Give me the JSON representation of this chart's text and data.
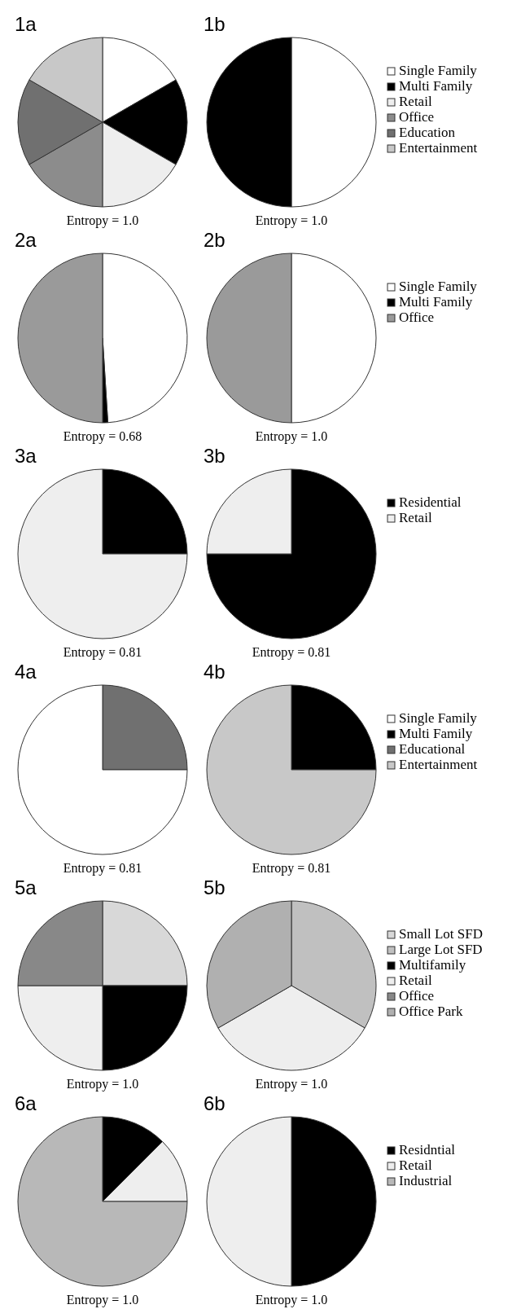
{
  "chart_data": [
    {
      "type": "pie",
      "title": "1a",
      "annotations": [
        "Entropy = 1.0"
      ],
      "categories": [
        null,
        null,
        null,
        null,
        null,
        null
      ],
      "values": [
        16.67,
        16.67,
        16.67,
        16.67,
        16.66,
        16.66
      ],
      "colors": [
        "#ffffff",
        "#000000",
        "#eeeeee",
        "#8c8c8c",
        "#707070",
        "#c8c8c8"
      ]
    },
    {
      "type": "pie",
      "title": "1b",
      "annotations": [
        "Entropy = 1.0"
      ],
      "legend": "right",
      "categories": [
        "Single Family",
        "Multi Family",
        "Retail",
        "Office",
        "Education",
        "Entertainment"
      ],
      "values": [
        50,
        50,
        0,
        0,
        0,
        0
      ],
      "colors": [
        "#ffffff",
        "#000000",
        "#eeeeee",
        "#8c8c8c",
        "#707070",
        "#c8c8c8"
      ]
    },
    {
      "type": "pie",
      "title": "2a",
      "annotations": [
        "Entropy = 0.68"
      ],
      "categories": [
        null,
        null,
        null
      ],
      "values": [
        49,
        1,
        50
      ],
      "colors": [
        "#ffffff",
        "#000000",
        "#9a9a9a"
      ]
    },
    {
      "type": "pie",
      "title": "2b",
      "annotations": [
        "Entropy = 1.0"
      ],
      "legend": "right",
      "categories": [
        "Single Family",
        "Multi Family",
        "Office"
      ],
      "values": [
        50,
        0,
        50
      ],
      "colors": [
        "#ffffff",
        "#000000",
        "#9a9a9a"
      ]
    },
    {
      "type": "pie",
      "title": "3a",
      "annotations": [
        "Entropy = 0.81"
      ],
      "categories": [
        null,
        null
      ],
      "values": [
        25,
        75
      ],
      "colors": [
        "#000000",
        "#eeeeee"
      ]
    },
    {
      "type": "pie",
      "title": "3b",
      "annotations": [
        "Entropy = 0.81"
      ],
      "legend": "right",
      "categories": [
        "Residential",
        "Retail"
      ],
      "values": [
        75,
        25
      ],
      "colors": [
        "#000000",
        "#eeeeee"
      ]
    },
    {
      "type": "pie",
      "title": "4a",
      "annotations": [
        "Entropy = 0.81"
      ],
      "categories": [
        null,
        null
      ],
      "values": [
        25,
        75
      ],
      "colors": [
        "#707070",
        "#ffffff"
      ]
    },
    {
      "type": "pie",
      "title": "4b",
      "annotations": [
        "Entropy = 0.81"
      ],
      "legend": "right",
      "categories": [
        "Single Family",
        "Multi Family",
        "Educational",
        "Entertainment"
      ],
      "values": [
        0,
        25,
        0,
        75
      ],
      "colors": [
        "#ffffff",
        "#000000",
        "#707070",
        "#c8c8c8"
      ]
    },
    {
      "type": "pie",
      "title": "5a",
      "annotations": [
        "Entropy = 1.0"
      ],
      "categories": [
        null,
        null,
        null,
        null
      ],
      "values": [
        25,
        25,
        25,
        25
      ],
      "colors": [
        "#d8d8d8",
        "#000000",
        "#eeeeee",
        "#888888"
      ]
    },
    {
      "type": "pie",
      "title": "5b",
      "annotations": [
        "Entropy = 1.0"
      ],
      "legend": "right",
      "categories": [
        "Small Lot SFD",
        "Large Lot SFD",
        "Multifamily",
        "Retail",
        "Office",
        "Office Park"
      ],
      "values": [
        0,
        33.33,
        0,
        33.33,
        0,
        33.34
      ],
      "colors": [
        "#d8d8d8",
        "#c0c0c0",
        "#000000",
        "#eeeeee",
        "#888888",
        "#b0b0b0"
      ]
    },
    {
      "type": "pie",
      "title": "6a",
      "annotations": [
        "Entropy = 1.0"
      ],
      "categories": [
        null,
        null,
        null
      ],
      "values": [
        12.5,
        12.5,
        75
      ],
      "colors": [
        "#000000",
        "#eeeeee",
        "#b8b8b8"
      ]
    },
    {
      "type": "pie",
      "title": "6b",
      "annotations": [
        "Entropy = 1.0"
      ],
      "legend": "right",
      "categories": [
        "Residntial",
        "Retail",
        "Industrial"
      ],
      "values": [
        50,
        50,
        0
      ],
      "colors": [
        "#000000",
        "#eeeeee",
        "#b8b8b8"
      ]
    }
  ]
}
